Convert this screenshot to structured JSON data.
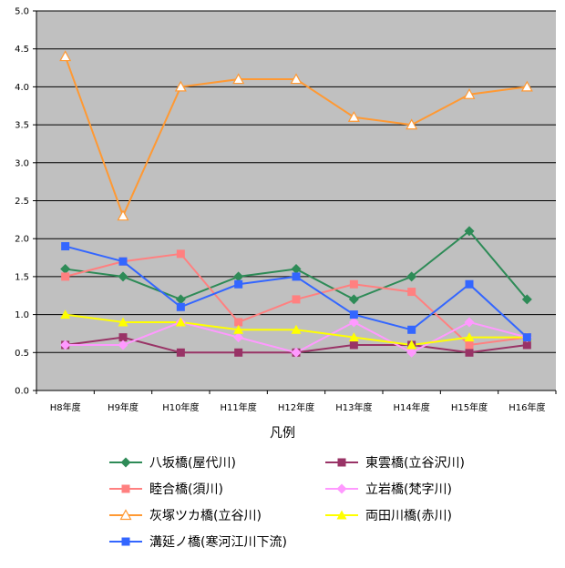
{
  "chart_data": {
    "type": "line",
    "categories": [
      "H8年度",
      "H9年度",
      "H10年度",
      "H11年度",
      "H12年度",
      "H13年度",
      "H14年度",
      "H15年度",
      "H16年度"
    ],
    "ylim": [
      0,
      5
    ],
    "yticks": [
      "0.0",
      "0.5",
      "1.0",
      "1.5",
      "2.0",
      "2.5",
      "3.0",
      "3.5",
      "4.0",
      "4.5",
      "5.0"
    ],
    "grid": true,
    "legend_title": "凡例",
    "legend_position": "bottom",
    "series": [
      {
        "name": "八坂橋(屋代川)",
        "color": "#2E8B57",
        "marker": "diamond",
        "values": [
          1.6,
          1.5,
          1.2,
          1.5,
          1.6,
          1.2,
          1.5,
          2.1,
          1.2
        ]
      },
      {
        "name": "東雲橋(立谷沢川)",
        "color": "#993366",
        "marker": "square",
        "values": [
          0.6,
          0.7,
          0.5,
          0.5,
          0.5,
          0.6,
          0.6,
          0.5,
          0.6
        ]
      },
      {
        "name": "睦合橋(須川)",
        "color": "#FF8080",
        "marker": "square",
        "values": [
          1.5,
          1.7,
          1.8,
          0.9,
          1.2,
          1.4,
          1.3,
          0.6,
          0.7
        ]
      },
      {
        "name": "立岩橋(梵字川)",
        "color": "#FF99FF",
        "marker": "diamond",
        "values": [
          0.6,
          0.6,
          0.9,
          0.7,
          0.5,
          0.9,
          0.5,
          0.9,
          0.7
        ]
      },
      {
        "name": "灰塚ツカ橋(立谷川)",
        "color": "#FF9933",
        "marker": "triangle-open",
        "values": [
          4.4,
          2.3,
          4.0,
          4.1,
          4.1,
          3.6,
          3.5,
          3.9,
          4.0
        ]
      },
      {
        "name": "両田川橋(赤川)",
        "color": "#FFFF00",
        "marker": "triangle",
        "values": [
          1.0,
          0.9,
          0.9,
          0.8,
          0.8,
          0.7,
          0.6,
          0.7,
          0.7
        ]
      },
      {
        "name": "溝延ノ橋(寒河江川下流)",
        "color": "#3366FF",
        "marker": "square",
        "values": [
          1.9,
          1.7,
          1.1,
          1.4,
          1.5,
          1.0,
          0.8,
          1.4,
          0.7
        ]
      }
    ]
  }
}
